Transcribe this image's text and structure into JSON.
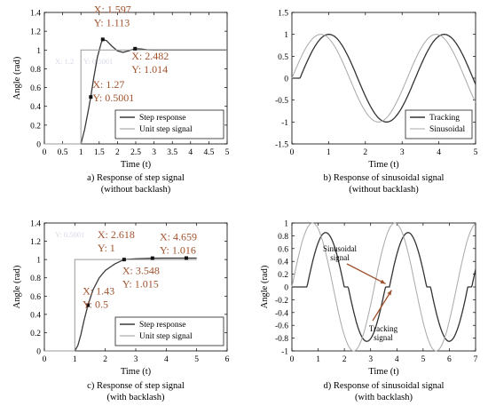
{
  "chart_data": [
    {
      "id": "a",
      "type": "line",
      "caption": [
        "a) Response of step signal",
        "(without backlash)"
      ],
      "xlabel": "Time (t)",
      "ylabel": "Angle (rad)",
      "xlim": [
        0,
        5
      ],
      "ylim": [
        0,
        1.4
      ],
      "xticks": [
        "0",
        "0.5",
        "1",
        "1.5",
        "2",
        "2.5",
        "3",
        "3.5",
        "4",
        "4.5",
        "5"
      ],
      "yticks": [
        "0",
        "0.2",
        "0.4",
        "0.6",
        "0.8",
        "1",
        "1.2",
        "1.4"
      ],
      "grid": false,
      "legend_position": "bottom-right",
      "series": [
        {
          "name": "Step response",
          "color": "#3a3a3a",
          "x": [
            1.0,
            1.1,
            1.2,
            1.27,
            1.35,
            1.45,
            1.55,
            1.597,
            1.7,
            1.85,
            2.0,
            2.15,
            2.3,
            2.482,
            2.65,
            2.8,
            3.0,
            3.5,
            4.0,
            5.0
          ],
          "y": [
            0.0,
            0.15,
            0.35,
            0.5001,
            0.7,
            0.92,
            1.07,
            1.113,
            1.1,
            1.04,
            0.99,
            0.975,
            0.99,
            1.014,
            1.01,
            1.003,
            1.0,
            1.0,
            1.0,
            1.0
          ]
        },
        {
          "name": "Unit step signal",
          "color": "#9a9a9a",
          "x": [
            0,
            1,
            1,
            5
          ],
          "y": [
            0,
            0,
            1,
            1
          ]
        }
      ],
      "datatips": [
        {
          "x": 1.597,
          "y": 1.113,
          "lines": [
            "X: 1.597",
            "Y: 1.113"
          ]
        },
        {
          "x": 2.482,
          "y": 1.014,
          "lines": [
            "X: 2.482",
            "Y: 1.014"
          ]
        },
        {
          "x": 1.27,
          "y": 0.5001,
          "lines": [
            "X: 1.27",
            "Y: 0.5001"
          ]
        }
      ],
      "ghost_text": [
        "X: 1.2",
        "Y: 0.5001"
      ]
    },
    {
      "id": "b",
      "type": "line",
      "caption": [
        "b) Response of sinusoidal signal",
        "(without backlash)"
      ],
      "xlabel": "Time (t)",
      "ylabel": "",
      "xlim": [
        0,
        5
      ],
      "ylim": [
        -1.5,
        1.5
      ],
      "xticks": [
        "0",
        "1",
        "2",
        "3",
        "4",
        "5"
      ],
      "yticks": [
        "-1.5",
        "-1",
        "-0.5",
        "0",
        "0.5",
        "1",
        "1.5"
      ],
      "grid": false,
      "legend_position": "bottom-right",
      "series": [
        {
          "name": "Tracking",
          "color": "#333333",
          "function": "sin",
          "amplitude": 1.0,
          "period": 3.14,
          "phase_shift": 0.22
        },
        {
          "name": "Sinusoidal",
          "color": "#a8a8a8",
          "function": "sin",
          "amplitude": 1.0,
          "period": 3.14,
          "phase_shift": 0.0
        }
      ]
    },
    {
      "id": "c",
      "type": "line",
      "caption": [
        "c) Response of step signal",
        "(with backlash)"
      ],
      "xlabel": "Time (t)",
      "ylabel": "Angle (rad)",
      "xlim": [
        0,
        6
      ],
      "ylim": [
        0,
        1.4
      ],
      "xticks": [
        "0",
        "1",
        "2",
        "3",
        "4",
        "5",
        "6"
      ],
      "yticks": [
        "0",
        "0.2",
        "0.4",
        "0.6",
        "0.8",
        "1",
        "1.2",
        "1.4"
      ],
      "grid": false,
      "legend_position": "bottom-right",
      "series": [
        {
          "name": "Step response",
          "color": "#3a3a3a",
          "x": [
            1.0,
            1.1,
            1.2,
            1.3,
            1.43,
            1.6,
            1.8,
            2.0,
            2.3,
            2.618,
            3.0,
            3.548,
            4.0,
            4.659,
            5.0
          ],
          "y": [
            0.0,
            0.06,
            0.18,
            0.33,
            0.5,
            0.67,
            0.8,
            0.88,
            0.95,
            1.0,
            1.008,
            1.015,
            1.016,
            1.016,
            1.016
          ]
        },
        {
          "name": "Unit step signal",
          "color": "#9a9a9a",
          "x": [
            0,
            1,
            1,
            5
          ],
          "y": [
            0,
            0,
            1,
            1
          ]
        }
      ],
      "datatips": [
        {
          "x": 2.618,
          "y": 1.0,
          "lines": [
            "X: 2.618",
            "Y: 1"
          ]
        },
        {
          "x": 4.659,
          "y": 1.016,
          "lines": [
            "X: 4.659",
            "Y: 1.016"
          ]
        },
        {
          "x": 3.548,
          "y": 1.015,
          "lines": [
            "X: 3.548",
            "Y: 1.015"
          ]
        },
        {
          "x": 1.43,
          "y": 0.5,
          "lines": [
            "X: 1.43",
            "Y: 0.5"
          ]
        }
      ],
      "ghost_text": [
        "Y: 0.5001"
      ]
    },
    {
      "id": "d",
      "type": "line",
      "caption": [
        "d) Response of sinusoidal signal",
        "(with backlash)"
      ],
      "xlabel": "Time (t)",
      "ylabel": "Angle (rad)",
      "xlim": [
        0,
        7
      ],
      "ylim": [
        -1,
        1
      ],
      "xticks": [
        "0",
        "1",
        "2",
        "3",
        "4",
        "5",
        "6",
        "7"
      ],
      "yticks": [
        "-1",
        "-0.8",
        "-0.6",
        "-0.4",
        "-0.2",
        "0",
        "0.2",
        "0.4",
        "0.6",
        "0.8",
        "1"
      ],
      "grid": false,
      "series": [
        {
          "name": "Tracking",
          "color": "#333333",
          "function": "sin-backlash",
          "amplitude": 0.85,
          "period": 3.14,
          "phase_shift": 0.5,
          "deadzone": 0.15
        },
        {
          "name": "Sinusoidal",
          "color": "#a8a8a8",
          "function": "sin",
          "amplitude": 1.0,
          "period": 3.14,
          "phase_shift": 0.0
        }
      ],
      "annotations": [
        {
          "lines": [
            "Sinusoidal",
            "signal"
          ],
          "arrow_to": [
            3.57,
            0.05
          ]
        },
        {
          "lines": [
            "Tracking",
            "signal"
          ],
          "arrow_to": [
            3.8,
            -0.05
          ]
        }
      ]
    }
  ]
}
